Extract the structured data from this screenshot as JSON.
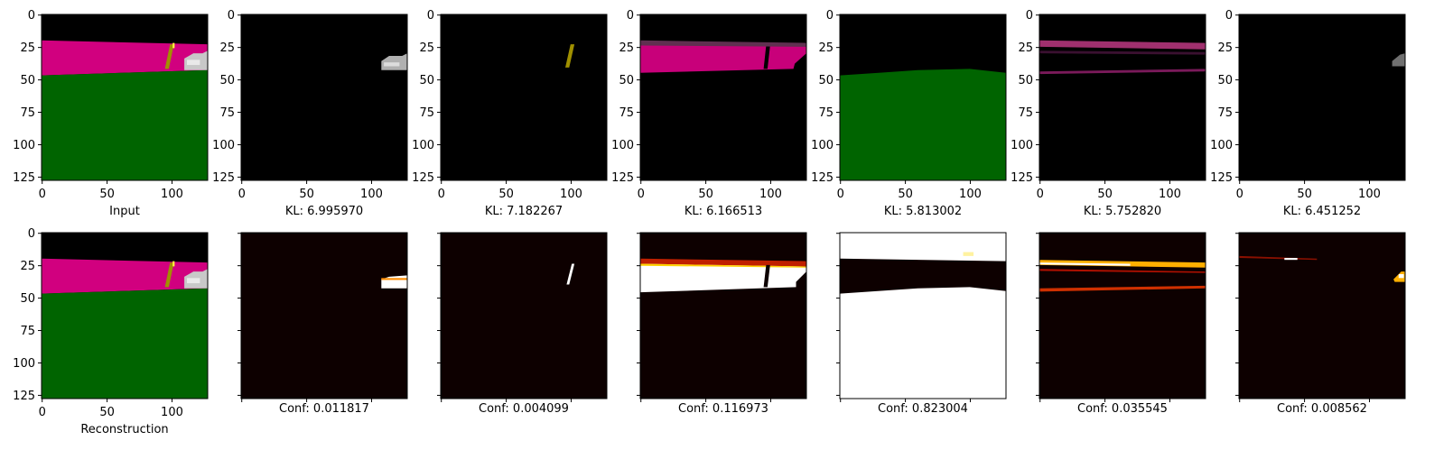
{
  "figure": {
    "panels": [
      {
        "id": "r0c0",
        "kind": "image",
        "content": "input",
        "caption": "Input"
      },
      {
        "id": "r0c1",
        "kind": "image",
        "content": "slot-car",
        "caption": "KL: 6.995970"
      },
      {
        "id": "r0c2",
        "kind": "image",
        "content": "slot-pole",
        "caption": "KL: 7.182267"
      },
      {
        "id": "r0c3",
        "kind": "image",
        "content": "slot-road",
        "caption": "KL: 6.166513"
      },
      {
        "id": "r0c4",
        "kind": "image",
        "content": "slot-grass",
        "caption": "KL: 5.813002"
      },
      {
        "id": "r0c5",
        "kind": "image",
        "content": "slot-edges",
        "caption": "KL: 5.752820"
      },
      {
        "id": "r0c6",
        "kind": "image",
        "content": "slot-faint",
        "caption": "KL: 6.451252"
      },
      {
        "id": "r1c0",
        "kind": "image",
        "content": "input",
        "caption": "Reconstruction"
      },
      {
        "id": "r1c1",
        "kind": "heatmap",
        "content": "mask-car",
        "caption": "Conf: 0.011817"
      },
      {
        "id": "r1c2",
        "kind": "heatmap",
        "content": "mask-pole",
        "caption": "Conf: 0.004099"
      },
      {
        "id": "r1c3",
        "kind": "heatmap",
        "content": "mask-road",
        "caption": "Conf: 0.116973"
      },
      {
        "id": "r1c4",
        "kind": "heatmap",
        "content": "mask-grass",
        "caption": "Conf: 0.823004"
      },
      {
        "id": "r1c5",
        "kind": "heatmap",
        "content": "mask-edges",
        "caption": "Conf: 0.035545"
      },
      {
        "id": "r1c6",
        "kind": "heatmap",
        "content": "mask-faint",
        "caption": "Conf: 0.008562"
      }
    ],
    "colors": {
      "sky": "#000000",
      "road": "#d1007f",
      "grass": "#006400",
      "pole": "#a09000",
      "car": "#c8c8c8",
      "heat_low": "#0d0000",
      "heat_high": "#ffffff"
    }
  },
  "chart_data": [
    {
      "type": "heatmap",
      "title": "",
      "caption": "Input",
      "xlim": [
        0,
        127
      ],
      "ylim": [
        127,
        0
      ],
      "xticks": [
        0,
        50,
        100
      ],
      "yticks": [
        0,
        25,
        50,
        75,
        100,
        125
      ]
    },
    {
      "type": "heatmap",
      "title": "",
      "caption": "KL: 6.995970",
      "kl": 6.99597,
      "xticks": [
        0,
        50,
        100
      ],
      "yticks": [
        0,
        25,
        50,
        75,
        100,
        125
      ]
    },
    {
      "type": "heatmap",
      "title": "",
      "caption": "KL: 7.182267",
      "kl": 7.182267,
      "xticks": [
        0,
        50,
        100
      ],
      "yticks": [
        0,
        25,
        50,
        75,
        100,
        125
      ]
    },
    {
      "type": "heatmap",
      "title": "",
      "caption": "KL: 6.166513",
      "kl": 6.166513,
      "xticks": [
        0,
        50,
        100
      ],
      "yticks": [
        0,
        25,
        50,
        75,
        100,
        125
      ]
    },
    {
      "type": "heatmap",
      "title": "",
      "caption": "KL: 5.813002",
      "kl": 5.813002,
      "xticks": [
        0,
        50,
        100
      ],
      "yticks": [
        0,
        25,
        50,
        75,
        100,
        125
      ]
    },
    {
      "type": "heatmap",
      "title": "",
      "caption": "KL: 5.752820",
      "kl": 5.75282,
      "xticks": [
        0,
        50,
        100
      ],
      "yticks": [
        0,
        25,
        50,
        75,
        100,
        125
      ]
    },
    {
      "type": "heatmap",
      "title": "",
      "caption": "KL: 6.451252",
      "kl": 6.451252,
      "xticks": [
        0,
        50,
        100
      ],
      "yticks": [
        0,
        25,
        50,
        75,
        100,
        125
      ]
    },
    {
      "type": "heatmap",
      "title": "",
      "caption": "Reconstruction",
      "xticks": [
        0,
        50,
        100
      ],
      "yticks": [
        0,
        25,
        50,
        75,
        100,
        125
      ]
    },
    {
      "type": "heatmap",
      "title": "",
      "caption": "Conf: 0.011817",
      "conf": 0.011817
    },
    {
      "type": "heatmap",
      "title": "",
      "caption": "Conf: 0.004099",
      "conf": 0.004099
    },
    {
      "type": "heatmap",
      "title": "",
      "caption": "Conf: 0.116973",
      "conf": 0.116973
    },
    {
      "type": "heatmap",
      "title": "",
      "caption": "Conf: 0.823004",
      "conf": 0.823004
    },
    {
      "type": "heatmap",
      "title": "",
      "caption": "Conf: 0.035545",
      "conf": 0.035545
    },
    {
      "type": "heatmap",
      "title": "",
      "caption": "Conf: 0.008562",
      "conf": 0.008562
    }
  ]
}
